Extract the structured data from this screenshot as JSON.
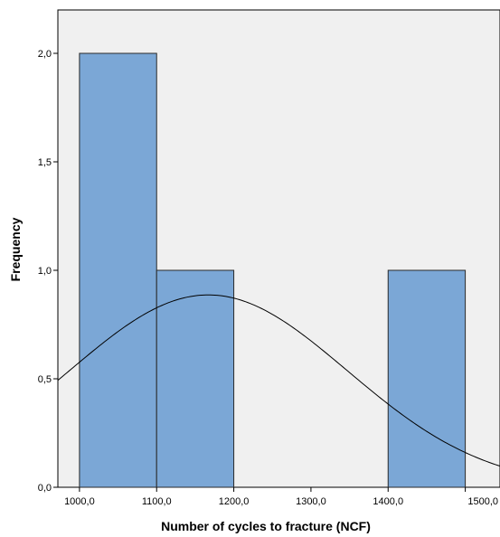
{
  "chart_data": {
    "type": "bar",
    "xlabel": "Number of cycles to fracture (NCF)",
    "ylabel": "Frequency",
    "xlim": [
      972,
      1545
    ],
    "ylim": [
      0,
      2.2
    ],
    "x_ticks": [
      1000,
      1100,
      1200,
      1300,
      1400,
      1500
    ],
    "x_tick_labels": [
      "1000,0",
      "1100,0",
      "1200,0",
      "1300,0",
      "1400,0",
      "1500,0"
    ],
    "y_ticks": [
      0,
      0.5,
      1.0,
      1.5,
      2.0
    ],
    "y_tick_labels": [
      "0,0",
      "0,5",
      "1,0",
      "1,5",
      "2,0"
    ],
    "bins": [
      {
        "start": 1000,
        "end": 1100,
        "count": 2
      },
      {
        "start": 1100,
        "end": 1200,
        "count": 1
      },
      {
        "start": 1400,
        "end": 1500,
        "count": 1
      }
    ],
    "normal_curve": {
      "mean": 1167,
      "sd": 180
    },
    "colors": {
      "bar_fill": "#7BA7D6",
      "bar_stroke": "#2a2a2a",
      "plot_bg": "#F0F0F0",
      "curve": "#000000"
    }
  }
}
